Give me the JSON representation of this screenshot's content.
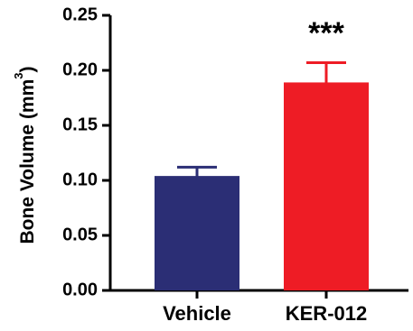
{
  "chart_data": {
    "type": "bar",
    "categories": [
      "Vehicle",
      "KER-012"
    ],
    "values": [
      0.104,
      0.189
    ],
    "error_bars": [
      0.008,
      0.018
    ],
    "bar_colors": [
      "#2b2e75",
      "#ee1c25"
    ],
    "annotations": [
      {
        "category": "KER-012",
        "text": "***"
      }
    ],
    "ylabel_main": "Bone Volume (mm",
    "ylabel_sup": "3",
    "ylabel_close": ")",
    "ylim": [
      0,
      0.25
    ],
    "yticks": [
      "0.00",
      "0.05",
      "0.10",
      "0.15",
      "0.20",
      "0.25"
    ],
    "grid": false,
    "legend": "none"
  }
}
